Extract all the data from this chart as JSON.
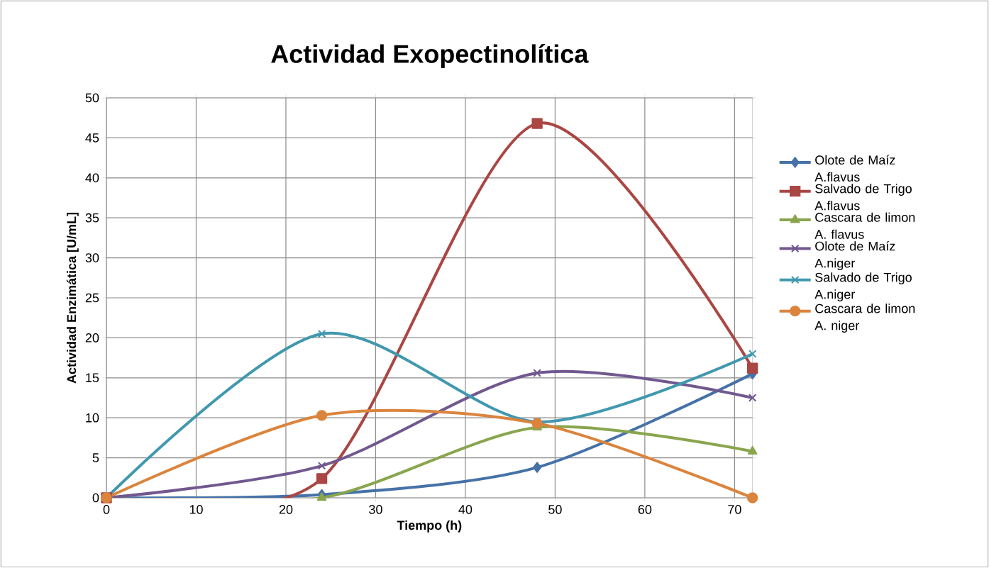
{
  "chart_data": {
    "type": "line",
    "title": "Actividad Exopectinolítica",
    "xlabel": "Tiempo (h)",
    "ylabel": "Actividad Enzimática [U/mL]",
    "x": [
      0,
      24,
      48,
      72
    ],
    "series": [
      {
        "name": "Olote de Maíz A.flavus",
        "color": "#4572a7",
        "marker": "diamond",
        "values": [
          0,
          0.4,
          3.8,
          15.5
        ]
      },
      {
        "name": "Salvado de Trigo A.flavus",
        "color": "#aa4643",
        "marker": "square",
        "values": [
          0,
          2.4,
          46.8,
          16.2
        ]
      },
      {
        "name": "Cascara de limon A. flavus",
        "color": "#89a54e",
        "marker": "triangle",
        "values": [
          0,
          0,
          8.8,
          5.8
        ]
      },
      {
        "name": "Olote de Maíz A.niger",
        "color": "#71588f",
        "marker": "cross",
        "values": [
          0,
          4.0,
          15.6,
          12.5
        ]
      },
      {
        "name": "Salvado de Trigo A.niger",
        "color": "#4198af",
        "marker": "cross",
        "values": [
          0,
          20.5,
          9.5,
          18.0
        ]
      },
      {
        "name": "Cascara de limon A. niger",
        "color": "#db843d",
        "marker": "circle",
        "values": [
          0,
          10.3,
          9.3,
          0
        ]
      }
    ],
    "xlim": [
      0,
      72
    ],
    "xticks": [
      0,
      10,
      20,
      30,
      40,
      50,
      60,
      70
    ],
    "ylim": [
      0,
      50
    ],
    "yticks": [
      0,
      5,
      10,
      15,
      20,
      25,
      30,
      35,
      40,
      45,
      50
    ],
    "grid": true,
    "legend": "right",
    "line_style": "solid"
  }
}
